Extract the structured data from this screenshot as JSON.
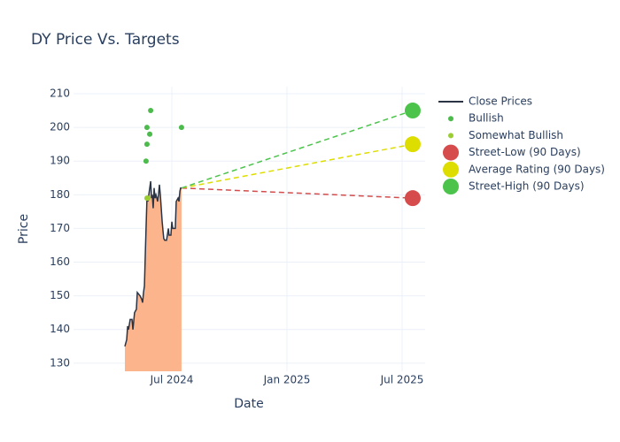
{
  "chart_data": {
    "type": "line",
    "title": "DY Price Vs. Targets",
    "xlabel": "Date",
    "ylabel": "Price",
    "xlim": [
      2024.073,
      2025.6
    ],
    "ylim": [
      127.6,
      212.1
    ],
    "xticks": [
      {
        "value": 2024.5,
        "label": "Jul 2024"
      },
      {
        "value": 2025.0,
        "label": "Jan 2025"
      },
      {
        "value": 2025.5,
        "label": "Jul 2025"
      }
    ],
    "yticks": [
      130,
      140,
      150,
      160,
      170,
      180,
      190,
      200,
      210
    ],
    "grid": true,
    "legend": "right",
    "series": [
      {
        "name": "Close Prices",
        "color": "#2a3445",
        "fill": "#fbb48c",
        "mode": "line",
        "x": [
          2024.296,
          2024.304,
          2024.308,
          2024.312,
          2024.319,
          2024.327,
          2024.331,
          2024.338,
          2024.346,
          2024.35,
          2024.362,
          2024.369,
          2024.373,
          2024.377,
          2024.381,
          2024.385,
          2024.388,
          2024.392,
          2024.396,
          2024.4,
          2024.408,
          2024.412,
          2024.415,
          2024.419,
          2024.423,
          2024.427,
          2024.431,
          2024.435,
          2024.438,
          2024.442,
          2024.446,
          2024.45,
          2024.454,
          2024.458,
          2024.462,
          2024.465,
          2024.469,
          2024.477,
          2024.485,
          2024.488,
          2024.496,
          2024.5,
          2024.504,
          2024.508,
          2024.515,
          2024.519,
          2024.527,
          2024.531,
          2024.535,
          2024.538,
          2024.542
        ],
        "values": [
          135,
          137,
          141,
          140,
          143,
          143,
          140,
          145,
          146,
          151,
          150,
          149,
          148,
          151,
          153,
          163,
          170,
          179,
          178,
          180,
          184,
          179,
          180,
          176,
          182,
          179,
          180,
          179,
          178,
          180,
          183,
          180,
          176,
          172,
          169,
          167,
          166.5,
          166.5,
          170,
          168,
          168,
          172,
          170,
          170,
          170,
          178,
          179,
          178,
          181,
          182,
          182
        ]
      },
      {
        "name": "Bullish",
        "color": "#4cbb4c",
        "mode": "markers",
        "marker_size": 3,
        "x": [
          2024.388,
          2024.392,
          2024.392,
          2024.404,
          2024.408,
          2024.542
        ],
        "values": [
          190,
          195,
          200,
          198,
          205,
          200
        ]
      },
      {
        "name": "Somewhat Bullish",
        "color": "#9acd32",
        "mode": "markers",
        "marker_size": 3,
        "x": [
          2024.392,
          2024.396
        ],
        "values": [
          179,
          179
        ]
      },
      {
        "name": "Street-Low (90 Days)",
        "color": "#d64b4b",
        "mode": "target",
        "marker_size": 9,
        "x": [
          2025.546
        ],
        "values": [
          179
        ]
      },
      {
        "name": "Average Rating (90 Days)",
        "color": "#dddd00",
        "mode": "target",
        "marker_size": 9,
        "x": [
          2025.546
        ],
        "values": [
          195
        ]
      },
      {
        "name": "Street-High (90 Days)",
        "color": "#4cc44c",
        "mode": "target",
        "marker_size": 9,
        "x": [
          2025.546
        ],
        "values": [
          205
        ]
      }
    ]
  }
}
